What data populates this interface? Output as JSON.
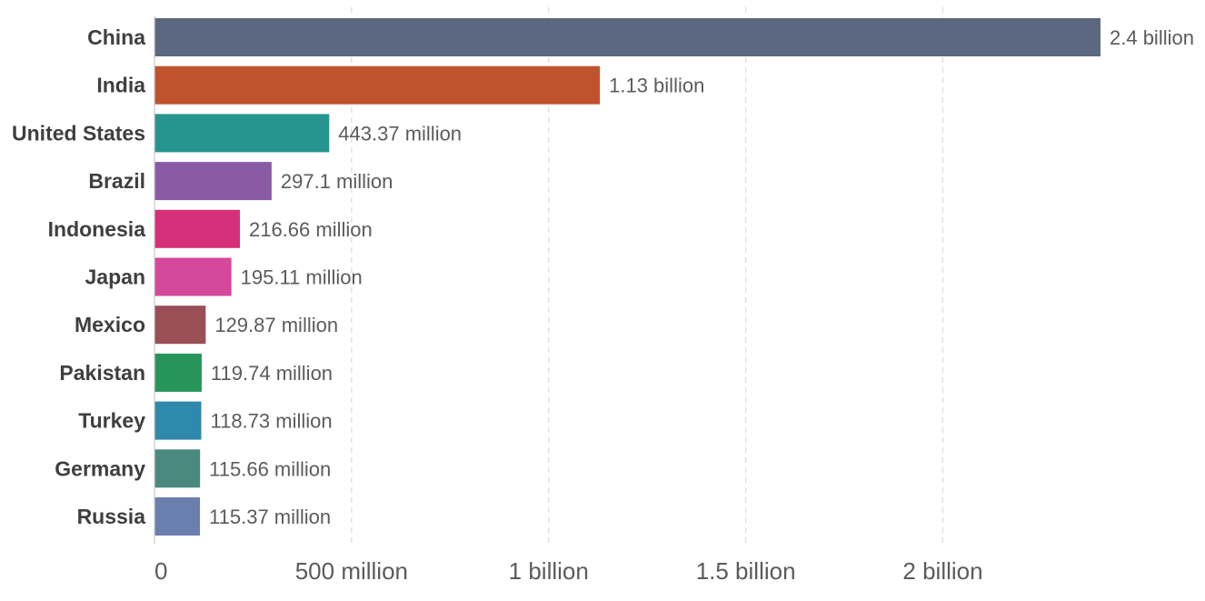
{
  "chart_data": {
    "type": "bar",
    "orientation": "horizontal",
    "title": "",
    "xlabel": "",
    "ylabel": "",
    "xlim": [
      0,
      2400000000
    ],
    "grid": "vertical-dashed",
    "categories": [
      "China",
      "India",
      "United States",
      "Brazil",
      "Indonesia",
      "Japan",
      "Mexico",
      "Pakistan",
      "Turkey",
      "Germany",
      "Russia"
    ],
    "values": [
      2400000000,
      1130000000,
      443370000,
      297100000,
      216660000,
      195110000,
      129870000,
      119740000,
      118730000,
      115660000,
      115370000
    ],
    "value_labels": [
      "2.4 billion",
      "1.13 billion",
      "443.37 million",
      "297.1 million",
      "216.66 million",
      "195.11 million",
      "129.87 million",
      "119.74 million",
      "118.73 million",
      "115.66 million",
      "115.37 million"
    ],
    "colors": [
      "#5b6880",
      "#bf532e",
      "#26958f",
      "#8a5aa5",
      "#d6307a",
      "#d6489c",
      "#9a4e55",
      "#27955a",
      "#2e89ac",
      "#4a8a7e",
      "#6a7fae"
    ],
    "x_ticks": [
      {
        "value": 0,
        "label": "0"
      },
      {
        "value": 500000000,
        "label": "500 million"
      },
      {
        "value": 1000000000,
        "label": "1 billion"
      },
      {
        "value": 1500000000,
        "label": "1.5 billion"
      },
      {
        "value": 2000000000,
        "label": "2 billion"
      }
    ]
  }
}
